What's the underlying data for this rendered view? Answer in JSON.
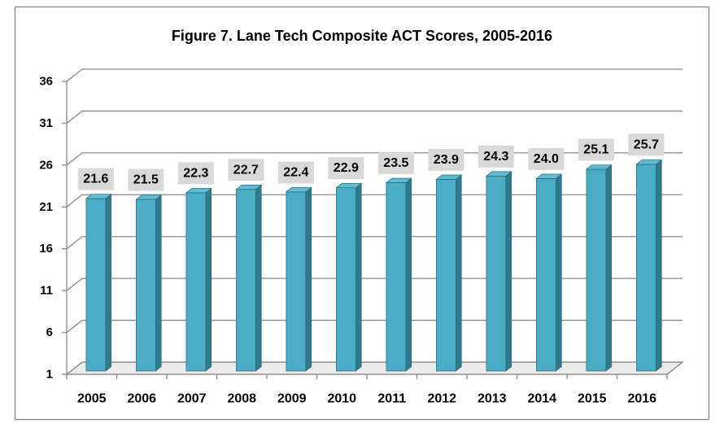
{
  "chart_data": {
    "type": "bar",
    "three_d": true,
    "title": "Figure 7. Lane Tech Composite ACT Scores, 2005-2016",
    "categories": [
      "2005",
      "2006",
      "2007",
      "2008",
      "2009",
      "2010",
      "2011",
      "2012",
      "2013",
      "2014",
      "2015",
      "2016"
    ],
    "values": [
      21.6,
      21.5,
      22.3,
      22.7,
      22.4,
      22.9,
      23.5,
      23.9,
      24.3,
      24.0,
      25.1,
      25.7
    ],
    "data_labels": [
      "21.6",
      "21.5",
      "22.3",
      "22.7",
      "22.4",
      "22.9",
      "23.5",
      "23.9",
      "24.3",
      "24.0",
      "25.1",
      "25.7"
    ],
    "y_ticks": [
      1,
      6,
      11,
      16,
      21,
      26,
      31,
      36
    ],
    "ylim": [
      1,
      36
    ],
    "grid": true,
    "colors": {
      "bar_front": "#4BACC6",
      "bar_side": "#2F7A8C",
      "bar_top": "#62BBD1",
      "bar_edge": "#2A6A7A",
      "label_box": "#D9D9D9",
      "gridline": "#8A8A8A"
    }
  }
}
